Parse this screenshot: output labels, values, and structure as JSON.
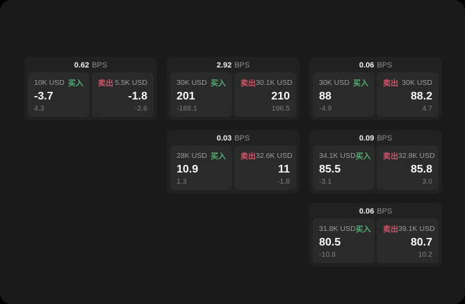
{
  "labels": {
    "bps": "BPS",
    "buy": "买入",
    "sell": "卖出"
  },
  "colors": {
    "background": "#000000",
    "surface": "#1a1a1a",
    "card": "#212121",
    "panel": "#2a2a2a",
    "buy_green": "#53ad74",
    "sell_red": "#cd5468",
    "value_white": "#f7f7f7",
    "muted_gray": "#9c9c9c"
  },
  "cards": [
    {
      "bps": "0.62",
      "buy": {
        "amount": "10K USD",
        "value": "-3.7",
        "delta": "4.3"
      },
      "sell": {
        "amount": "5.5K USD",
        "value": "-1.8",
        "delta": "-2.6"
      }
    },
    {
      "bps": "2.92",
      "buy": {
        "amount": "30K USD",
        "value": "201",
        "delta": "-188.1"
      },
      "sell": {
        "amount": "30.1K USD",
        "value": "210",
        "delta": "196.5"
      }
    },
    {
      "bps": "0.06",
      "buy": {
        "amount": "30K USD",
        "value": "88",
        "delta": "-4.9"
      },
      "sell": {
        "amount": "30K USD",
        "value": "88.2",
        "delta": "4.7"
      }
    },
    {
      "bps": "0.03",
      "buy": {
        "amount": "28K USD",
        "value": "10.9",
        "delta": "1.3"
      },
      "sell": {
        "amount": "32.6K USD",
        "value": "11",
        "delta": "-1.8"
      }
    },
    {
      "bps": "0.09",
      "buy": {
        "amount": "34.1K USD",
        "value": "85.5",
        "delta": "-3.1"
      },
      "sell": {
        "amount": "32.8K USD",
        "value": "85.8",
        "delta": "3.0"
      }
    },
    {
      "bps": "0.06",
      "buy": {
        "amount": "31.8K USD",
        "value": "80.5",
        "delta": "-10.8"
      },
      "sell": {
        "amount": "39.1K USD",
        "value": "80.7",
        "delta": "10.2"
      }
    }
  ]
}
